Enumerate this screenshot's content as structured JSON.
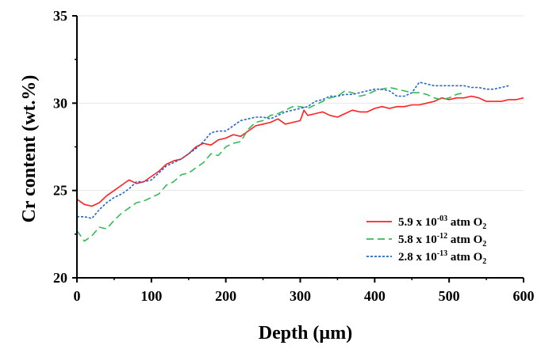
{
  "chart_data": {
    "type": "line",
    "title": "",
    "xlabel": "Depth (µm)",
    "ylabel": "Cr content (wt.%)",
    "xlim": [
      0,
      600
    ],
    "ylim": [
      20,
      35
    ],
    "xticks": [
      "0",
      "100",
      "200",
      "300",
      "400",
      "500",
      "600"
    ],
    "yticks": [
      "20",
      "25",
      "30",
      "35"
    ],
    "grid": true,
    "legend_position": "bottom-right",
    "series": [
      {
        "legend": {
          "mantissa": "5.9 x 10",
          "exponent": "-03",
          "unit": " atm O",
          "subscript": "2"
        },
        "color": "#ff2020",
        "dash": "solid",
        "x": [
          0,
          10,
          20,
          30,
          40,
          50,
          60,
          70,
          80,
          90,
          100,
          110,
          120,
          130,
          140,
          150,
          160,
          170,
          180,
          190,
          200,
          210,
          220,
          230,
          240,
          250,
          260,
          270,
          280,
          290,
          300,
          305,
          310,
          320,
          330,
          340,
          350,
          360,
          370,
          380,
          390,
          400,
          410,
          420,
          430,
          440,
          450,
          460,
          470,
          480,
          490,
          500,
          510,
          520,
          530,
          540,
          550,
          560,
          570,
          580,
          590,
          600
        ],
        "y": [
          24.5,
          24.2,
          24.1,
          24.3,
          24.7,
          25.0,
          25.3,
          25.6,
          25.4,
          25.5,
          25.8,
          26.1,
          26.5,
          26.7,
          26.8,
          27.1,
          27.5,
          27.7,
          27.6,
          27.9,
          28.0,
          28.2,
          28.1,
          28.4,
          28.7,
          28.8,
          28.9,
          29.1,
          28.8,
          28.9,
          29.0,
          29.6,
          29.3,
          29.4,
          29.5,
          29.3,
          29.2,
          29.4,
          29.6,
          29.5,
          29.5,
          29.7,
          29.8,
          29.7,
          29.8,
          29.8,
          29.9,
          29.9,
          30.0,
          30.1,
          30.3,
          30.2,
          30.3,
          30.3,
          30.4,
          30.3,
          30.1,
          30.1,
          30.1,
          30.2,
          30.2,
          30.3
        ]
      },
      {
        "legend": {
          "mantissa": "5.8 x 10",
          "exponent": "-12",
          "unit": " atm O",
          "subscript": "2"
        },
        "color": "#33bb55",
        "dash": "long",
        "x": [
          0,
          10,
          20,
          30,
          40,
          50,
          60,
          70,
          80,
          90,
          100,
          110,
          120,
          130,
          140,
          150,
          160,
          170,
          180,
          190,
          200,
          210,
          220,
          230,
          240,
          250,
          260,
          270,
          280,
          290,
          300,
          310,
          320,
          330,
          340,
          350,
          360,
          370,
          380,
          390,
          400,
          410,
          420,
          430,
          440,
          450,
          460,
          470,
          480,
          490,
          500,
          510,
          520
        ],
        "y": [
          22.7,
          22.1,
          22.4,
          22.9,
          22.8,
          23.3,
          23.7,
          24.0,
          24.3,
          24.4,
          24.6,
          24.8,
          25.3,
          25.5,
          25.9,
          26.0,
          26.3,
          26.6,
          27.1,
          27.0,
          27.5,
          27.7,
          27.8,
          28.5,
          28.9,
          29.0,
          29.3,
          29.4,
          29.6,
          29.8,
          29.8,
          29.7,
          29.9,
          30.1,
          30.3,
          30.4,
          30.7,
          30.6,
          30.4,
          30.5,
          30.7,
          30.8,
          30.9,
          30.8,
          30.7,
          30.6,
          30.6,
          30.5,
          30.3,
          30.2,
          30.3,
          30.5,
          30.6
        ]
      },
      {
        "legend": {
          "mantissa": "2.8 x 10",
          "exponent": "-13",
          "unit": " atm O",
          "subscript": "2"
        },
        "color": "#2266cc",
        "dash": "short",
        "x": [
          0,
          10,
          20,
          30,
          40,
          50,
          60,
          70,
          80,
          90,
          100,
          110,
          120,
          130,
          140,
          150,
          160,
          170,
          180,
          190,
          200,
          210,
          220,
          230,
          240,
          250,
          260,
          270,
          280,
          290,
          300,
          310,
          320,
          330,
          340,
          350,
          360,
          370,
          380,
          390,
          400,
          410,
          420,
          430,
          440,
          450,
          460,
          470,
          480,
          490,
          500,
          510,
          520,
          530,
          540,
          550,
          560,
          570,
          580
        ],
        "y": [
          23.5,
          23.5,
          23.4,
          23.9,
          24.3,
          24.6,
          24.8,
          25.1,
          25.5,
          25.5,
          25.6,
          26.0,
          26.4,
          26.6,
          26.8,
          27.1,
          27.4,
          27.8,
          28.3,
          28.4,
          28.4,
          28.7,
          29.0,
          29.1,
          29.2,
          29.2,
          29.1,
          29.3,
          29.5,
          29.6,
          29.7,
          29.8,
          30.1,
          30.2,
          30.4,
          30.4,
          30.5,
          30.5,
          30.6,
          30.7,
          30.8,
          30.8,
          30.7,
          30.4,
          30.4,
          30.6,
          31.2,
          31.1,
          31.0,
          31.0,
          31.0,
          31.0,
          31.0,
          30.9,
          30.9,
          30.8,
          30.8,
          30.9,
          31.0
        ]
      }
    ]
  }
}
